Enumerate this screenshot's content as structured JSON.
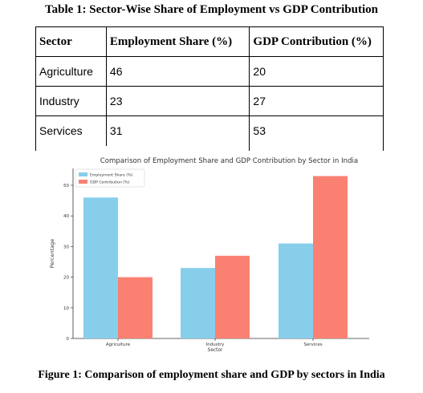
{
  "table": {
    "caption": "Table 1: Sector-Wise Share of Employment vs GDP Contribution",
    "headers": [
      "Sector",
      "Employment Share (%)",
      "GDP Contribution (%)"
    ],
    "rows": [
      [
        "Agriculture",
        "46",
        "20"
      ],
      [
        "Industry",
        "23",
        "27"
      ],
      [
        "Services",
        "31",
        "53"
      ]
    ]
  },
  "figure_caption": "Figure 1: Comparison of employment share and GDP by sectors in India",
  "chart_data": {
    "type": "bar",
    "title": "Comparison of Employment Share and GDP Contribution by Sector in India",
    "xlabel": "Sector",
    "ylabel": "Percentage",
    "categories": [
      "Agriculture",
      "Industry",
      "Services"
    ],
    "series": [
      {
        "name": "Employment Share (%)",
        "values": [
          46,
          23,
          31
        ],
        "color": "#87ceeb"
      },
      {
        "name": "GDP Contribution (%)",
        "values": [
          20,
          27,
          53
        ],
        "color": "#fa8072"
      }
    ],
    "ylim": [
      0,
      55
    ],
    "yticks": [
      0,
      10,
      20,
      30,
      40,
      50
    ],
    "legend": "top-left",
    "grid": false
  }
}
